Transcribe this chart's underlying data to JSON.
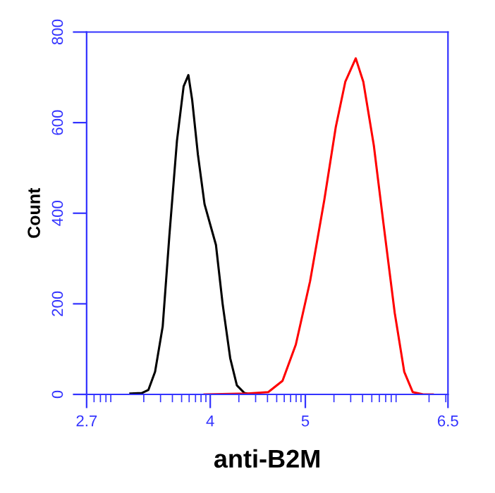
{
  "chart_data": {
    "type": "line",
    "xlabel": "anti-B2M",
    "ylabel": "Count",
    "series": [
      {
        "color": "#000000",
        "x": [
          3.16,
          3.28,
          3.35,
          3.42,
          3.5,
          3.57,
          3.65,
          3.72,
          3.77,
          3.81,
          3.87,
          3.94,
          4.02,
          4.06,
          4.13,
          4.21,
          4.28,
          4.36,
          4.43
        ],
        "values": [
          2,
          3,
          10,
          50,
          150,
          350,
          560,
          680,
          705,
          650,
          530,
          420,
          360,
          330,
          200,
          80,
          20,
          3,
          0
        ]
      },
      {
        "color": "#ff0000",
        "x": [
          3.94,
          4.39,
          4.61,
          4.76,
          4.9,
          5.05,
          5.2,
          5.32,
          5.42,
          5.53,
          5.61,
          5.72,
          5.82,
          5.94,
          6.04,
          6.13,
          6.24,
          6.34
        ],
        "values": [
          0,
          2,
          5,
          30,
          110,
          250,
          430,
          590,
          690,
          742,
          690,
          550,
          380,
          180,
          50,
          5,
          0,
          0
        ]
      }
    ],
    "xlim": [
      2.7,
      6.5
    ],
    "xticks": [
      2.7,
      4,
      5,
      6.5
    ],
    "ylim": [
      0,
      800
    ],
    "yticks": [
      0,
      200,
      400,
      600,
      800
    ],
    "grid": false,
    "legend": false
  }
}
